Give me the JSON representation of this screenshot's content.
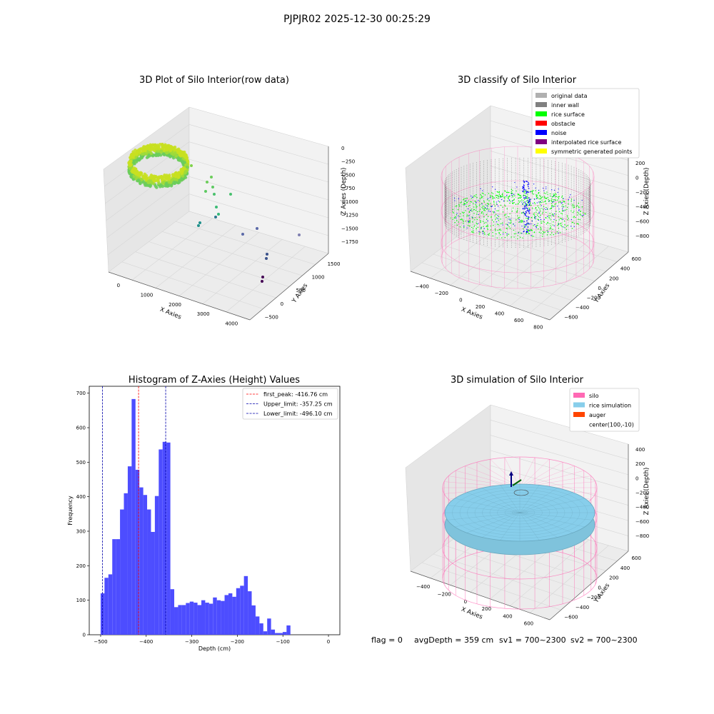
{
  "suptitle": "PJPJR02 2025-12-30 00:25:29",
  "footer": {
    "flag": "flag = 0",
    "avg_depth": "avgDepth = 359 cm",
    "sv1": "sv1 = 700~2300",
    "sv2": "sv2 = 700~2300"
  },
  "colors": {
    "hist_bar": "#4d4dff",
    "first_peak": "#ff0000",
    "limit_line": "#0000aa",
    "pane_back": "#f2f2f2",
    "pane_side": "#e6e6e6",
    "grid": "#d6d6d6",
    "silo": "#ff69b4",
    "rice": "#87ceeb",
    "auger": "#ff4500",
    "inner_wall": "#808080",
    "rice_surface": "#00ff00",
    "noise": "#0000ff"
  },
  "chart_data": [
    {
      "id": "raw",
      "type": "scatter",
      "title": "3D Plot of Silo Interior(row data)",
      "xlabel": "X Axies",
      "ylabel": "Y Axies",
      "zlabel": "Z Axies (Depth)",
      "xticks": [
        "0",
        "1000",
        "2000",
        "3000",
        "4000"
      ],
      "yticks": [
        "−500",
        "0",
        "500",
        "1000",
        "1500"
      ],
      "zticks": [
        "0",
        "−250",
        "−500",
        "−750",
        "−1000",
        "−1250",
        "−1500",
        "−1750"
      ],
      "xlim": [
        -500,
        4500
      ],
      "ylim": [
        -700,
        1600
      ],
      "zlim": [
        -1800,
        100
      ],
      "grid": true,
      "colormap": "viridis"
    },
    {
      "id": "classify",
      "type": "scatter",
      "title": "3D classify of Silo Interior",
      "xlabel": "X Axies",
      "ylabel": "Y Axies",
      "zlabel": "Z Axies (Depth)",
      "xticks": [
        "−400",
        "−200",
        "0",
        "200",
        "400",
        "600",
        "800"
      ],
      "yticks": [
        "−600",
        "−400",
        "−200",
        "0",
        "200",
        "400",
        "600"
      ],
      "zticks": [
        "200",
        "0",
        "−200",
        "−400",
        "−600",
        "−800"
      ],
      "legend_position": "upper right",
      "legend": [
        {
          "label": "original data",
          "color": "#b0b0b0"
        },
        {
          "label": "inner wall",
          "color": "#808080"
        },
        {
          "label": "rice surface",
          "color": "#00ff00"
        },
        {
          "label": "obstacle",
          "color": "#ff0000"
        },
        {
          "label": "noise",
          "color": "#0000ff"
        },
        {
          "label": "interpolated rice surface",
          "color": "#800080"
        },
        {
          "label": "symmetric generated points",
          "color": "#ffff00"
        }
      ],
      "grid": true
    },
    {
      "id": "hist",
      "type": "bar",
      "title": "Histogram of Z-Axies (Height) Values",
      "xlabel": "Depth (cm)",
      "ylabel": "Frequency",
      "xticks": [
        -500,
        -400,
        -300,
        -200,
        -100,
        0
      ],
      "xtick_labels": [
        "−500",
        "−400",
        "−300",
        "−200",
        "−100",
        "0"
      ],
      "yticks": [
        0,
        100,
        200,
        300,
        400,
        500,
        600,
        700
      ],
      "xlim": [
        -525,
        25
      ],
      "ylim": [
        0,
        720
      ],
      "bins_start": -500,
      "bin_width": 8.5,
      "values": [
        120,
        165,
        175,
        277,
        277,
        363,
        410,
        488,
        683,
        478,
        427,
        405,
        363,
        298,
        402,
        537,
        559,
        557,
        132,
        80,
        86,
        86,
        92,
        96,
        93,
        86,
        100,
        93,
        90,
        108,
        100,
        98,
        115,
        120,
        110,
        135,
        142,
        170,
        126,
        85,
        53,
        33,
        10,
        47,
        15,
        5,
        5,
        8,
        27
      ],
      "vlines": [
        {
          "label": "first_peak: -416.76 cm",
          "x": -416.76,
          "color": "#ff0000"
        },
        {
          "label": "Upper_limit: -357.25 cm",
          "x": -357.25,
          "color": "#0000aa"
        },
        {
          "label": "Lower_limit: -496.10 cm",
          "x": -496.1,
          "color": "#0000aa"
        }
      ],
      "legend_position": "upper right",
      "grid": false
    },
    {
      "id": "sim",
      "type": "scatter",
      "title": "3D simulation of Silo Interior",
      "xlabel": "X Axies",
      "ylabel": "Y Axies",
      "zlabel": "Z Axies (Depth)",
      "xticks": [
        "−400",
        "−200",
        "0",
        "200",
        "400",
        "600"
      ],
      "yticks": [
        "−600",
        "−400",
        "−200",
        "0",
        "200",
        "400",
        "600"
      ],
      "zticks": [
        "400",
        "200",
        "0",
        "−200",
        "−400",
        "−600",
        "−800"
      ],
      "legend_position": "upper right",
      "legend": [
        {
          "label": "silo",
          "color": "#ff69b4",
          "marker": "patch"
        },
        {
          "label": "rice simulation",
          "color": "#87ceeb",
          "marker": "patch"
        },
        {
          "label": "auger",
          "color": "#ff4500",
          "marker": "patch"
        },
        {
          "label": "center(100,-10)",
          "color": "",
          "marker": "none"
        }
      ],
      "grid": true
    }
  ]
}
